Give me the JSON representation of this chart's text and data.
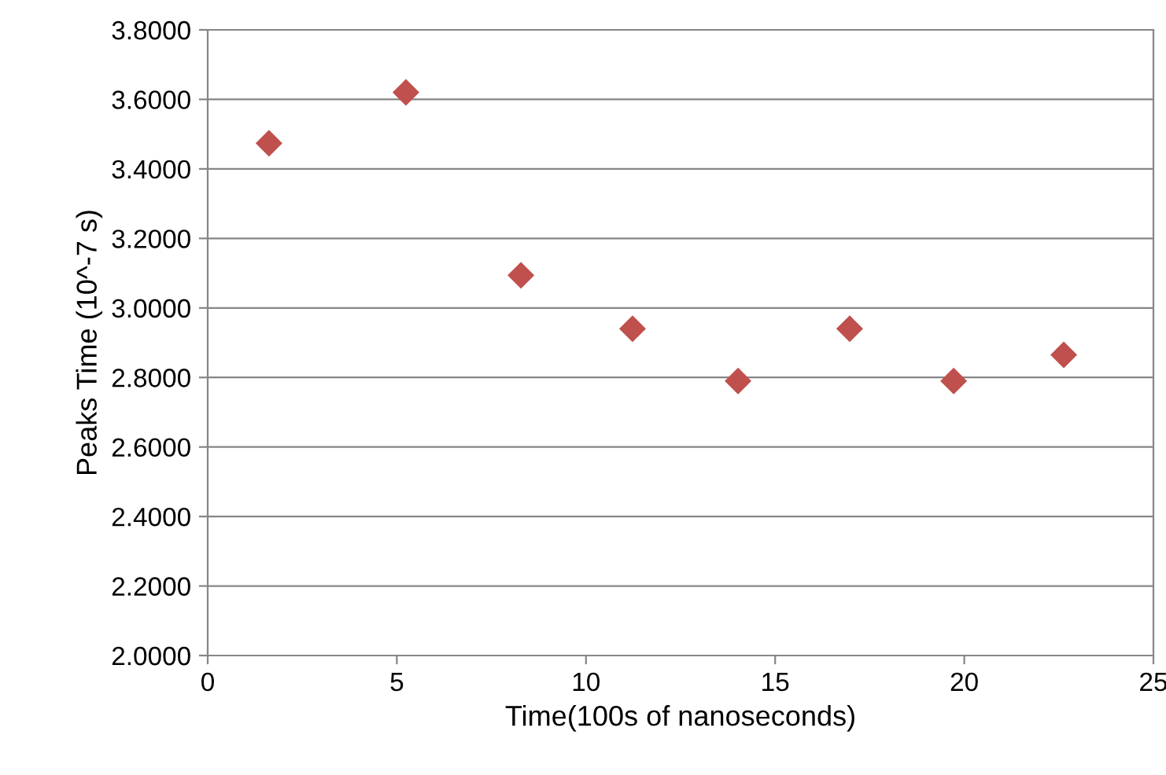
{
  "chart_data": {
    "type": "scatter",
    "xlabel": "Time(100s of nanoseconds)",
    "ylabel": "Peaks Time (10^-7 s)",
    "x": [
      1.62,
      5.24,
      8.28,
      11.23,
      14.02,
      16.97,
      19.72,
      22.63
    ],
    "series": [
      {
        "color": "#c0504d",
        "values": [
          3.474,
          3.62,
          3.094,
          2.94,
          2.79,
          2.94,
          2.79,
          2.865
        ]
      }
    ],
    "xlim": [
      0,
      25
    ],
    "xticks": [
      0,
      5,
      10,
      15,
      20,
      25
    ],
    "ylim": [
      2.0,
      3.8
    ],
    "yticks": [
      {
        "value": 2.0,
        "label": "2.0000"
      },
      {
        "value": 2.2,
        "label": "2.2000"
      },
      {
        "value": 2.4,
        "label": "2.4000"
      },
      {
        "value": 2.6,
        "label": "2.6000"
      },
      {
        "value": 2.8,
        "label": "2.8000"
      },
      {
        "value": 3.0,
        "label": "3.0000"
      },
      {
        "value": 3.2,
        "label": "3.2000"
      },
      {
        "value": 3.4,
        "label": "3.4000"
      },
      {
        "value": 3.6,
        "label": "3.6000"
      },
      {
        "value": 3.8,
        "label": "3.8000"
      }
    ],
    "grid": "y",
    "marker": "diamond",
    "legend": false
  }
}
